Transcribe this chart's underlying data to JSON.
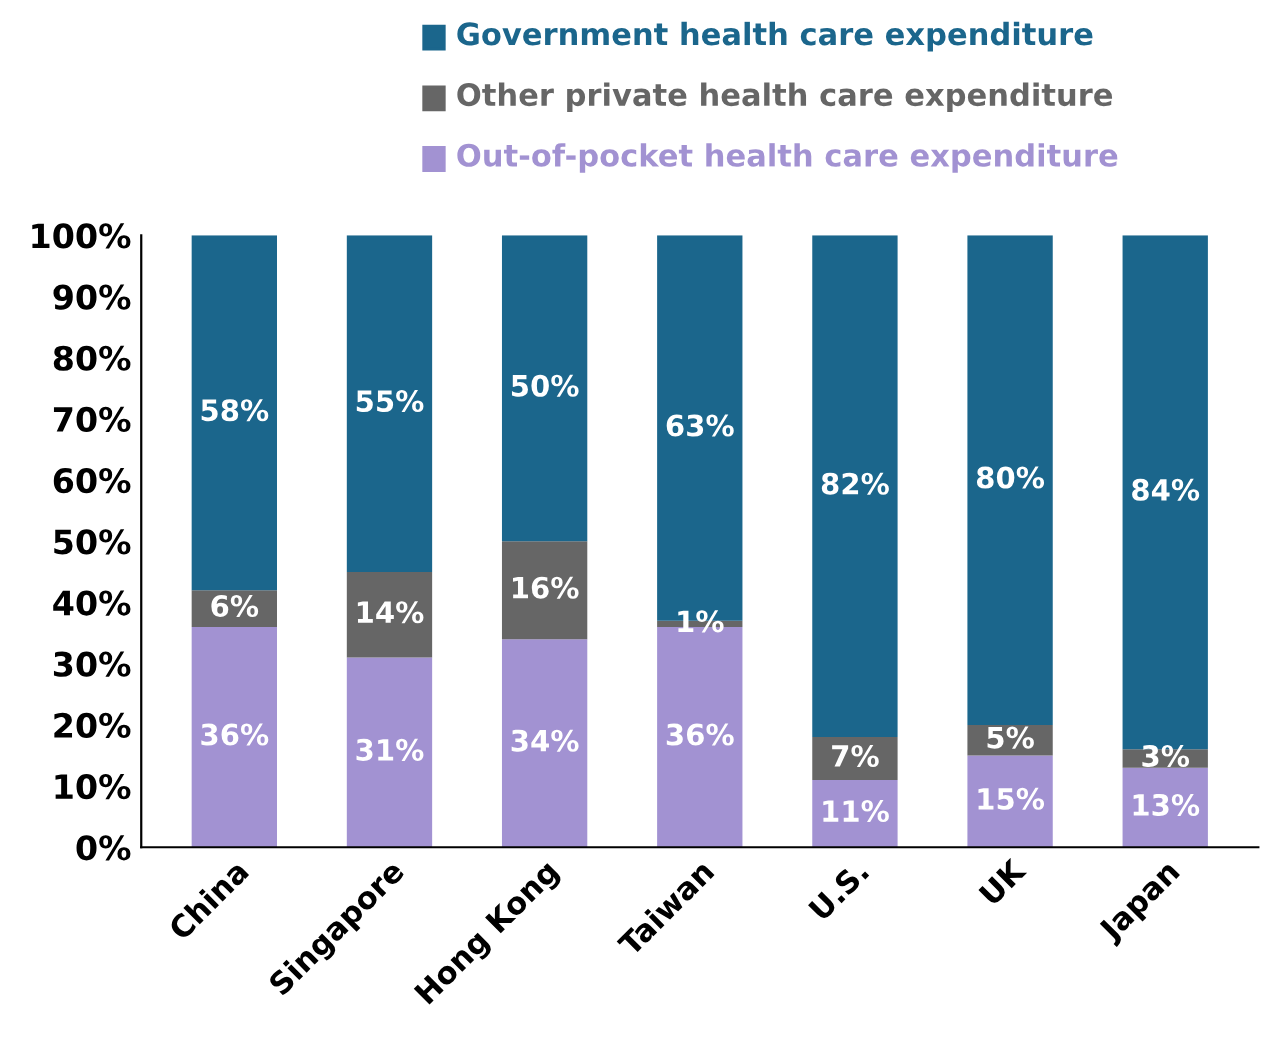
{
  "chart_data": {
    "type": "bar",
    "stacked": true,
    "categories": [
      "China",
      "Singapore",
      "Hong Kong",
      "Taiwan",
      "U.S.",
      "UK",
      "Japan"
    ],
    "series": [
      {
        "name": "Out-of-pocket health care expenditure",
        "color": "#a292d2",
        "values": [
          36,
          31,
          34,
          36,
          11,
          15,
          13
        ],
        "value_labels": [
          "36%",
          "31%",
          "34%",
          "36%",
          "11%",
          "15%",
          "13%"
        ]
      },
      {
        "name": "Other private health care expenditure",
        "color": "#666666",
        "values": [
          6,
          14,
          16,
          1,
          7,
          5,
          3
        ],
        "value_labels": [
          "6%",
          "14%",
          "16%",
          "1%",
          "7%",
          "5%",
          "3%"
        ]
      },
      {
        "name": "Government health care expenditure",
        "color": "#1b668c",
        "values": [
          58,
          55,
          50,
          63,
          82,
          80,
          84
        ],
        "value_labels": [
          "58%",
          "55%",
          "50%",
          "63%",
          "82%",
          "80%",
          "84%"
        ]
      }
    ],
    "ylim": [
      0,
      100
    ],
    "yticks": [
      {
        "value": 0,
        "label": "0%"
      },
      {
        "value": 10,
        "label": "10%"
      },
      {
        "value": 20,
        "label": "20%"
      },
      {
        "value": 30,
        "label": "30%"
      },
      {
        "value": 40,
        "label": "40%"
      },
      {
        "value": 50,
        "label": "50%"
      },
      {
        "value": 60,
        "label": "60%"
      },
      {
        "value": 70,
        "label": "70%"
      },
      {
        "value": 80,
        "label": "80%"
      },
      {
        "value": 90,
        "label": "90%"
      },
      {
        "value": 100,
        "label": "100%"
      }
    ],
    "legend": "top",
    "grid": false
  }
}
